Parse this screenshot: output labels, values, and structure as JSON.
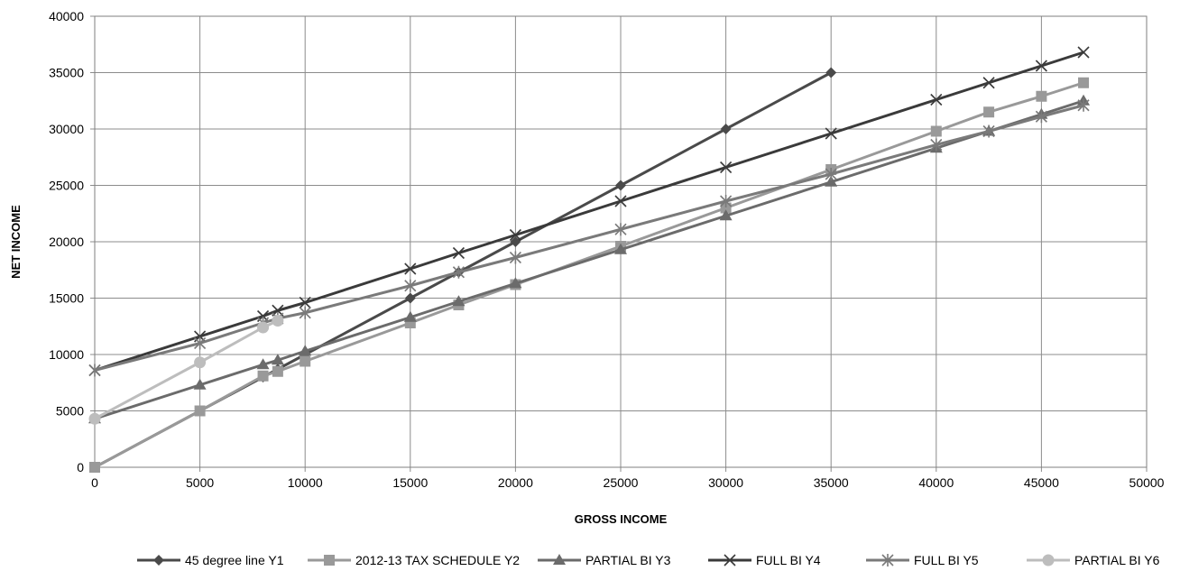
{
  "chart_data": {
    "type": "line",
    "title": "",
    "xlabel": "GROSS INCOME",
    "ylabel": "NET INCOME",
    "xlim": [
      0,
      50000
    ],
    "ylim": [
      0,
      40000
    ],
    "x_ticks": [
      "0",
      "5000",
      "10000",
      "15000",
      "20000",
      "25000",
      "30000",
      "35000",
      "40000",
      "45000",
      "50000"
    ],
    "y_ticks": [
      "0",
      "5000",
      "10000",
      "15000",
      "20000",
      "25000",
      "30000",
      "35000",
      "40000"
    ],
    "grid": true,
    "legend_position": "bottom",
    "series": [
      {
        "name": "45 degree line Y1",
        "color": "#4a4a4a",
        "marker": "diamond",
        "points": [
          [
            0,
            0
          ],
          [
            5000,
            5000
          ],
          [
            8000,
            8000
          ],
          [
            8700,
            8700
          ],
          [
            10000,
            10000
          ],
          [
            15000,
            15000
          ],
          [
            17300,
            17300
          ],
          [
            20000,
            20000
          ],
          [
            25000,
            25000
          ],
          [
            30000,
            30000
          ],
          [
            35000,
            35000
          ]
        ]
      },
      {
        "name": "2012-13 TAX SCHEDULE Y2",
        "color": "#999999",
        "marker": "square",
        "points": [
          [
            0,
            0
          ],
          [
            5000,
            5000
          ],
          [
            8000,
            8100
          ],
          [
            8700,
            8500
          ],
          [
            10000,
            9400
          ],
          [
            15000,
            12800
          ],
          [
            17300,
            14400
          ],
          [
            20000,
            16200
          ],
          [
            25000,
            19600
          ],
          [
            30000,
            23000
          ],
          [
            35000,
            26400
          ],
          [
            40000,
            29800
          ],
          [
            42500,
            31500
          ],
          [
            45000,
            32900
          ],
          [
            47000,
            34100
          ]
        ]
      },
      {
        "name": "PARTIAL BI Y3",
        "color": "#6b6b6b",
        "marker": "triangle",
        "points": [
          [
            0,
            4300
          ],
          [
            5000,
            7300
          ],
          [
            8000,
            9100
          ],
          [
            8700,
            9500
          ],
          [
            10000,
            10300
          ],
          [
            15000,
            13300
          ],
          [
            17300,
            14700
          ],
          [
            20000,
            16300
          ],
          [
            25000,
            19300
          ],
          [
            30000,
            22300
          ],
          [
            35000,
            25300
          ],
          [
            40000,
            28300
          ],
          [
            42500,
            29800
          ],
          [
            45000,
            31300
          ],
          [
            47000,
            32500
          ]
        ]
      },
      {
        "name": "FULL BI Y4",
        "color": "#3a3a3a",
        "marker": "x",
        "points": [
          [
            0,
            8600
          ],
          [
            5000,
            11600
          ],
          [
            8000,
            13400
          ],
          [
            8700,
            13900
          ],
          [
            10000,
            14600
          ],
          [
            15000,
            17600
          ],
          [
            17300,
            19000
          ],
          [
            20000,
            20600
          ],
          [
            25000,
            23600
          ],
          [
            30000,
            26600
          ],
          [
            35000,
            29600
          ],
          [
            40000,
            32600
          ],
          [
            42500,
            34100
          ],
          [
            45000,
            35600
          ],
          [
            47000,
            36800
          ]
        ]
      },
      {
        "name": "FULL BI Y5",
        "color": "#7a7a7a",
        "marker": "star",
        "points": [
          [
            0,
            8600
          ],
          [
            5000,
            11000
          ],
          [
            8000,
            12800
          ],
          [
            8700,
            13200
          ],
          [
            10000,
            13700
          ],
          [
            15000,
            16100
          ],
          [
            17300,
            17300
          ],
          [
            20000,
            18600
          ],
          [
            25000,
            21100
          ],
          [
            30000,
            23600
          ],
          [
            35000,
            26000
          ],
          [
            40000,
            28600
          ],
          [
            42500,
            29800
          ],
          [
            45000,
            31100
          ],
          [
            47000,
            32100
          ]
        ]
      },
      {
        "name": "PARTIAL BI Y6",
        "color": "#bdbdbd",
        "marker": "circle",
        "points": [
          [
            0,
            4300
          ],
          [
            5000,
            9300
          ],
          [
            8000,
            12400
          ],
          [
            8700,
            13000
          ]
        ]
      }
    ]
  }
}
